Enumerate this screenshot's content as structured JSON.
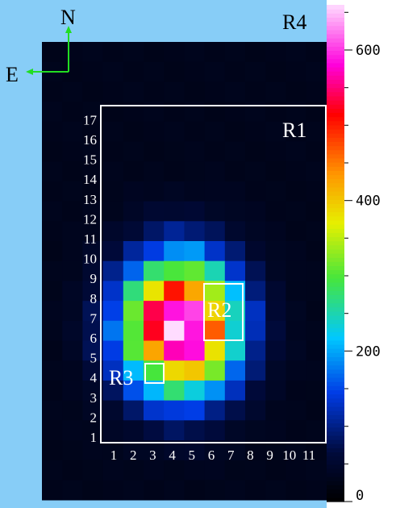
{
  "chart_data": {
    "type": "heatmap",
    "title": "",
    "xlabel": "",
    "ylabel": "",
    "x_ticks": [
      "1",
      "2",
      "3",
      "4",
      "5",
      "6",
      "7",
      "8",
      "9",
      "10",
      "11"
    ],
    "y_ticks": [
      "1",
      "2",
      "3",
      "4",
      "5",
      "6",
      "7",
      "8",
      "9",
      "10",
      "11",
      "12",
      "13",
      "14",
      "15",
      "16",
      "17"
    ],
    "colorbar": {
      "ticks": [
        "0",
        "200",
        "400",
        "600"
      ],
      "range": [
        0,
        660
      ],
      "scale": "linear"
    },
    "compass": {
      "north": "N",
      "east": "E",
      "color": "#22dd22"
    },
    "regions": [
      {
        "label": "R1",
        "color": "#ffffff"
      },
      {
        "label": "R2",
        "color": "#ffffff"
      },
      {
        "label": "R3",
        "color": "#ffffff"
      },
      {
        "label": "R4",
        "color": "#000000"
      }
    ],
    "background_color": "#87cdf7",
    "peak_value": 640,
    "background_value": 30
  }
}
